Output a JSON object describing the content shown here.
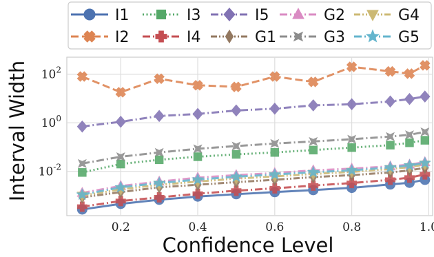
{
  "chart_data": {
    "type": "line",
    "title": "",
    "xlabel": "Confidence Level",
    "ylabel": "Interval Width",
    "yscale": "log",
    "xlim": [
      0.06,
      1.01
    ],
    "ylim": [
      0.00015,
      500
    ],
    "xticks": [
      0.2,
      0.4,
      0.6,
      0.8,
      1.0
    ],
    "xtick_labels": [
      "0.2",
      "0.4",
      "0.6",
      "0.8",
      "1.0"
    ],
    "yticks": [
      0.01,
      1,
      100
    ],
    "ytick_labels": [
      "10^{-2}",
      "10^{0}",
      "10^{2}"
    ],
    "grid": true,
    "legend_position": "top",
    "x": [
      0.1,
      0.2,
      0.3,
      0.4,
      0.5,
      0.6,
      0.7,
      0.8,
      0.9,
      0.95,
      0.99
    ],
    "series": [
      {
        "name": "I1",
        "color": "#4c72b0",
        "dash": "solid",
        "marker": "circle",
        "values": [
          0.00027,
          0.00046,
          0.00068,
          0.00092,
          0.00115,
          0.0014,
          0.0017,
          0.0021,
          0.0029,
          0.0034,
          0.0045
        ]
      },
      {
        "name": "I2",
        "color": "#dd8452",
        "dash": "dashed",
        "marker": "x",
        "values": [
          80,
          18,
          65,
          35,
          30,
          80,
          48,
          200,
          130,
          105,
          230
        ]
      },
      {
        "name": "I3",
        "color": "#55a868",
        "dash": "dotted",
        "marker": "square",
        "values": [
          0.009,
          0.02,
          0.03,
          0.04,
          0.05,
          0.06,
          0.075,
          0.095,
          0.12,
          0.15,
          0.19
        ]
      },
      {
        "name": "I4",
        "color": "#c44e52",
        "dash": "dashdot",
        "marker": "plus",
        "values": [
          0.00035,
          0.0006,
          0.00085,
          0.0012,
          0.0016,
          0.002,
          0.0026,
          0.0033,
          0.0045,
          0.0055,
          0.0075
        ]
      },
      {
        "name": "I5",
        "color": "#8172b3",
        "dash": "dashdot",
        "marker": "diamond",
        "values": [
          0.7,
          1.1,
          1.9,
          2.3,
          3.2,
          3.8,
          5.2,
          5.8,
          7.5,
          9.5,
          12
        ]
      },
      {
        "name": "G1",
        "color": "#937860",
        "dash": "dashdotdot",
        "marker": "diamond_thin",
        "values": [
          0.00085,
          0.0014,
          0.0022,
          0.0028,
          0.0036,
          0.0045,
          0.0058,
          0.007,
          0.009,
          0.011,
          0.014
        ]
      },
      {
        "name": "G2",
        "color": "#da8bc3",
        "dash": "dashdot",
        "marker": "triangle_up",
        "values": [
          0.0013,
          0.0025,
          0.0038,
          0.0055,
          0.007,
          0.0085,
          0.011,
          0.013,
          0.016,
          0.019,
          0.024
        ]
      },
      {
        "name": "G3",
        "color": "#8c8c8c",
        "dash": "dashdot",
        "marker": "star4",
        "values": [
          0.021,
          0.04,
          0.06,
          0.085,
          0.11,
          0.14,
          0.17,
          0.21,
          0.27,
          0.32,
          0.42
        ]
      },
      {
        "name": "G4",
        "color": "#ccb974",
        "dash": "dashdotdot",
        "marker": "triangle_down",
        "values": [
          0.001,
          0.0018,
          0.0028,
          0.0038,
          0.005,
          0.0062,
          0.0078,
          0.0095,
          0.0125,
          0.015,
          0.019
        ]
      },
      {
        "name": "G5",
        "color": "#64b5cd",
        "dash": "dashdot",
        "marker": "star",
        "values": [
          0.0011,
          0.0022,
          0.0033,
          0.0046,
          0.006,
          0.0074,
          0.0092,
          0.011,
          0.0145,
          0.0175,
          0.022
        ]
      }
    ]
  }
}
